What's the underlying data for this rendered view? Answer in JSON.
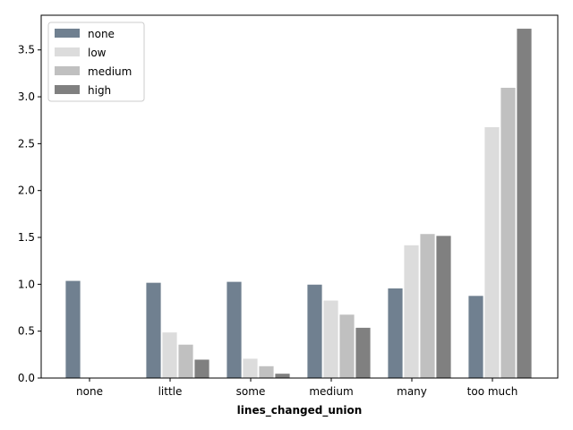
{
  "chart_data": {
    "type": "bar",
    "title": "",
    "xlabel": "lines_changed_union",
    "ylabel": "",
    "categories": [
      "none",
      "little",
      "some",
      "medium",
      "many",
      "too much"
    ],
    "series": [
      {
        "name": "none",
        "color": "#708090",
        "values": [
          1.04,
          1.02,
          1.03,
          1.0,
          0.96,
          0.88
        ]
      },
      {
        "name": "low",
        "color": "#dcdcdc",
        "values": [
          0.0,
          0.49,
          0.21,
          0.83,
          1.42,
          2.68
        ]
      },
      {
        "name": "medium",
        "color": "#c0c0c0",
        "values": [
          0.0,
          0.36,
          0.13,
          0.68,
          1.54,
          3.1
        ]
      },
      {
        "name": "high",
        "color": "#808080",
        "values": [
          0.0,
          0.2,
          0.05,
          0.54,
          1.52,
          3.73
        ]
      }
    ],
    "ylim": [
      0,
      3.87
    ],
    "yticks": [
      0.0,
      0.5,
      1.0,
      1.5,
      2.0,
      2.5,
      3.0,
      3.5
    ],
    "ytick_labels": [
      "0.0",
      "0.5",
      "1.0",
      "1.5",
      "2.0",
      "2.5",
      "3.0",
      "3.5"
    ],
    "grid": false,
    "legend_position": "top-left"
  }
}
